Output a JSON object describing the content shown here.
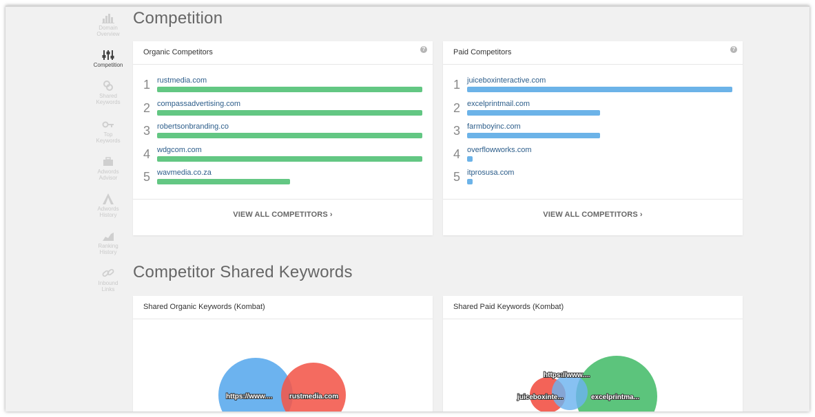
{
  "sidebar": {
    "items": [
      {
        "label": "Domain\nOverview",
        "icon": "bar-chart-icon",
        "active": false
      },
      {
        "label": "Competition",
        "icon": "sliders-icon",
        "active": true
      },
      {
        "label": "Shared\nKeywords",
        "icon": "link-rings-icon",
        "active": false
      },
      {
        "label": "Top\nKeywords",
        "icon": "key-icon",
        "active": false
      },
      {
        "label": "Adwords\nAdvisor",
        "icon": "briefcase-icon",
        "active": false
      },
      {
        "label": "Adwords\nHistory",
        "icon": "adwords-icon",
        "active": false
      },
      {
        "label": "Ranking\nHistory",
        "icon": "area-chart-icon",
        "active": false
      },
      {
        "label": "Inbound\nLinks",
        "icon": "chain-link-icon",
        "active": false
      }
    ]
  },
  "sections": {
    "competition_title": "Competition",
    "shared_title": "Competitor Shared Keywords"
  },
  "organic": {
    "title": "Organic Competitors",
    "bar_color": "#63c783",
    "competitors": [
      {
        "rank": "1",
        "domain": "rustmedia.com",
        "share": 1.0
      },
      {
        "rank": "2",
        "domain": "compassadvertising.com",
        "share": 1.0
      },
      {
        "rank": "3",
        "domain": "robertsonbranding.co",
        "share": 1.0
      },
      {
        "rank": "4",
        "domain": "wdgcom.com",
        "share": 1.0
      },
      {
        "rank": "5",
        "domain": "wavmedia.co.za",
        "share": 0.5
      }
    ],
    "view_all": "VIEW ALL COMPETITORS ›"
  },
  "paid": {
    "title": "Paid Competitors",
    "bar_color": "#6cb3e8",
    "competitors": [
      {
        "rank": "1",
        "domain": "juiceboxinteractive.com",
        "share": 1.0
      },
      {
        "rank": "2",
        "domain": "excelprintmail.com",
        "share": 0.5
      },
      {
        "rank": "3",
        "domain": "farmboyinc.com",
        "share": 0.5
      },
      {
        "rank": "4",
        "domain": "overflowworks.com",
        "share": 0.02
      },
      {
        "rank": "5",
        "domain": "itprosusa.com",
        "share": 0.02
      }
    ],
    "view_all": "VIEW ALL COMPETITORS ›"
  },
  "shared_organic": {
    "title": "Shared Organic Keywords (Kombat)",
    "labels": [
      "https://www....",
      "rustmedia.com"
    ],
    "colors": [
      "#6cb3ef",
      "#f2564a"
    ]
  },
  "shared_paid": {
    "title": "Shared Paid Keywords (Kombat)",
    "labels": [
      "https://www....",
      "juiceboxinte...",
      "excelprintma..."
    ],
    "colors": [
      "#6cb3ef",
      "#f2564a",
      "#5cc47c"
    ]
  },
  "help_glyph": "?"
}
